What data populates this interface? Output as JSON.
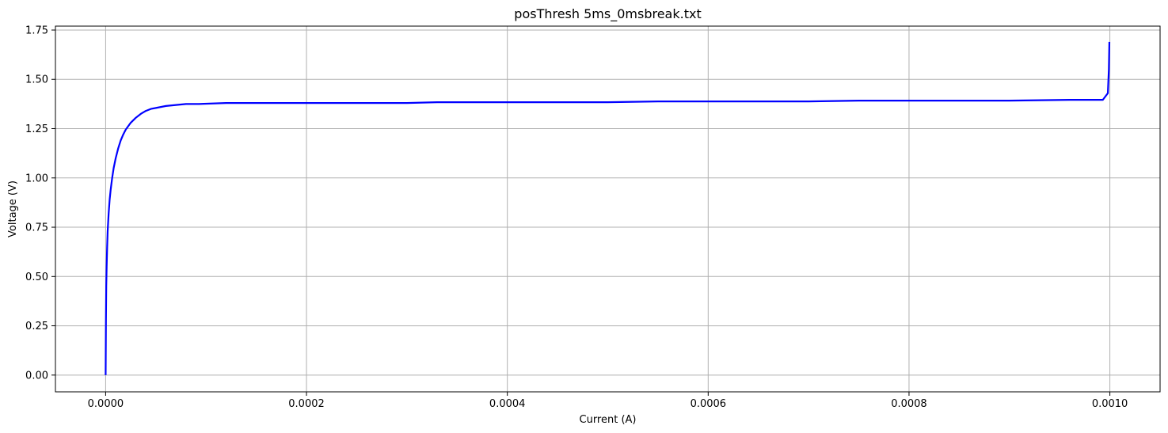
{
  "chart_data": {
    "type": "line",
    "title": "posThresh 5ms_0msbreak.txt",
    "xlabel": "Current (A)",
    "ylabel": "Voltage (V)",
    "xlim": [
      -5e-05,
      0.00105
    ],
    "ylim": [
      -0.085,
      1.77
    ],
    "xticks": [
      0.0,
      0.0002,
      0.0004,
      0.0006,
      0.0008,
      0.001
    ],
    "xtick_labels": [
      "0.0000",
      "0.0002",
      "0.0004",
      "0.0006",
      "0.0008",
      "0.0010"
    ],
    "yticks": [
      0.0,
      0.25,
      0.5,
      0.75,
      1.0,
      1.25,
      1.5,
      1.75
    ],
    "ytick_labels": [
      "0.00",
      "0.25",
      "0.50",
      "0.75",
      "1.00",
      "1.25",
      "1.50",
      "1.75"
    ],
    "grid": true,
    "line_color": "#0000ff",
    "grid_color": "#b0b0b0",
    "series": [
      {
        "x": [
          0,
          1e-07,
          3e-07,
          6e-07,
          1e-06,
          1.5e-06,
          2e-06,
          3e-06,
          4e-06,
          5e-06,
          6.5e-06,
          8e-06,
          1e-05,
          1.25e-05,
          1.5e-05,
          1.75e-05,
          2e-05,
          2.5e-05,
          3e-05,
          3.5e-05,
          4e-05,
          4.5e-05,
          5e-05,
          6e-05,
          7e-05,
          8e-05,
          9e-05,
          9.25e-05,
          0.00012,
          0.00015,
          0.0002,
          0.00025,
          0.0003,
          0.00033,
          0.0004,
          0.0005,
          0.00055,
          0.0006,
          0.0007,
          0.00075,
          0.0008,
          0.0009,
          0.00096,
          0.000985,
          0.000993,
          0.000998,
          0.000999,
          0.0009995
        ],
        "y": [
          0.0,
          0.1,
          0.28,
          0.45,
          0.55,
          0.65,
          0.73,
          0.82,
          0.89,
          0.94,
          1.0,
          1.05,
          1.1,
          1.15,
          1.19,
          1.22,
          1.245,
          1.28,
          1.305,
          1.325,
          1.34,
          1.35,
          1.355,
          1.365,
          1.37,
          1.375,
          1.375,
          1.375,
          1.38,
          1.38,
          1.38,
          1.38,
          1.38,
          1.384,
          1.384,
          1.384,
          1.388,
          1.388,
          1.388,
          1.392,
          1.392,
          1.392,
          1.396,
          1.396,
          1.396,
          1.43,
          1.55,
          1.69
        ]
      }
    ]
  }
}
